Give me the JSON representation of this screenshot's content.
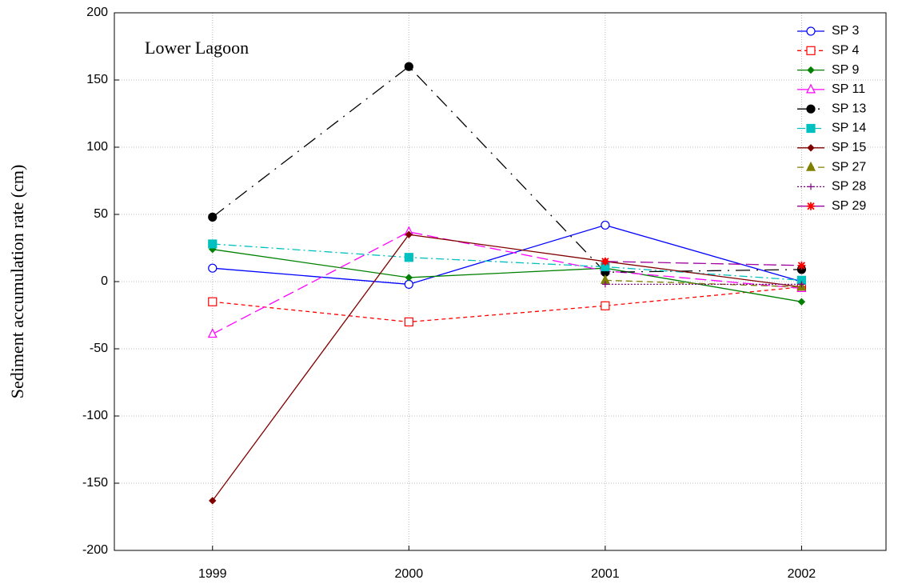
{
  "chart_data": {
    "type": "line",
    "annotation": "Lower Lagoon",
    "y_label": "Sediment accumulation rate (cm)",
    "x": [
      1999,
      2000,
      2001,
      2002
    ],
    "xlim": [
      1998.5,
      2002.43
    ],
    "xticks": [
      1999,
      2000,
      2001,
      2002
    ],
    "ylim": [
      -200,
      200
    ],
    "yticks": [
      -200,
      -150,
      -100,
      -50,
      0,
      50,
      100,
      150,
      200
    ],
    "grid": true,
    "legend": "upper right",
    "series": [
      {
        "name": "SP 3",
        "color": "#0000ff",
        "marker": "circle-open",
        "dash": "",
        "values": [
          10,
          -2,
          42,
          0
        ]
      },
      {
        "name": "SP 4",
        "color": "#ff0000",
        "marker": "square-open",
        "dash": "5 4",
        "values": [
          -15,
          -30,
          -18,
          -4
        ]
      },
      {
        "name": "SP 9",
        "color": "#008000",
        "marker": "diamond",
        "dash": "",
        "values": [
          24,
          3,
          10,
          -15
        ]
      },
      {
        "name": "SP 11",
        "color": "#ff00ff",
        "marker": "triangle-open",
        "dash": "14 6",
        "values": [
          -39,
          37,
          8,
          -5
        ]
      },
      {
        "name": "SP 13",
        "color": "#000000",
        "marker": "circle",
        "dash": "18 8 2 8",
        "values": [
          48,
          160,
          7,
          9
        ]
      },
      {
        "name": "SP 14",
        "color": "#00c0c0",
        "marker": "square",
        "dash": "10 4 2 4",
        "values": [
          28,
          18,
          11,
          1
        ]
      },
      {
        "name": "SP 15",
        "color": "#800000",
        "marker": "diamond",
        "dash": "",
        "values": [
          -163,
          35,
          15,
          -4
        ]
      },
      {
        "name": "SP 27",
        "color": "#808000",
        "marker": "triangle",
        "dash": "8 5",
        "values": [
          null,
          null,
          1,
          -4
        ]
      },
      {
        "name": "SP 28",
        "color": "#800080",
        "marker": "plus",
        "dash": "2 2",
        "values": [
          null,
          null,
          -2,
          -2
        ]
      },
      {
        "name": "SP 29",
        "color": "#a000a0",
        "marker": "star",
        "dash": "16 6",
        "values": [
          null,
          null,
          15,
          12
        ]
      }
    ]
  }
}
